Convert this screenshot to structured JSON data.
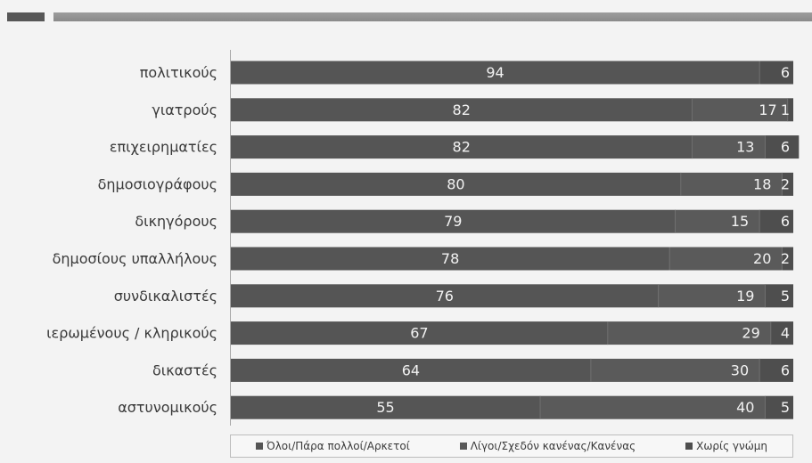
{
  "chart_data": {
    "type": "bar",
    "orientation": "horizontal",
    "stacked": true,
    "categories": [
      "πολιτικούς",
      "γιατρούς",
      "επιχειρηματίες",
      "δημοσιογράφους",
      "δικηγόρους",
      "δημοσίους υπαλλήλους",
      "συνδικαλιστές",
      "ιερωμένους / κληρικούς",
      "δικαστές",
      "αστυνομικούς"
    ],
    "series": [
      {
        "name": "Όλοι/Πάρα πολλοί/Αρκετοί",
        "values": [
          94,
          82,
          82,
          80,
          79,
          78,
          76,
          67,
          64,
          55
        ],
        "color": "#555555"
      },
      {
        "name": "Λίγοι/Σχεδόν κανένας/Κανένας",
        "values": [
          0,
          17,
          13,
          18,
          15,
          20,
          19,
          29,
          30,
          40
        ],
        "color": "#5a5a5a"
      },
      {
        "name": "Χωρίς γνώμη",
        "values": [
          6,
          1,
          6,
          2,
          6,
          2,
          5,
          4,
          6,
          5
        ],
        "color": "#4e4e4e"
      }
    ],
    "segment_labels": [
      [
        "94",
        "",
        "6"
      ],
      [
        "82",
        "17",
        "1"
      ],
      [
        "82",
        "13",
        "6"
      ],
      [
        "80",
        "18",
        "2"
      ],
      [
        "79",
        "15",
        "6"
      ],
      [
        "78",
        "20",
        "2"
      ],
      [
        "76",
        "19",
        "5"
      ],
      [
        "67",
        "29",
        "4"
      ],
      [
        "64",
        "30",
        "6"
      ],
      [
        "55",
        "40",
        "5"
      ]
    ],
    "xlim": [
      0,
      100
    ],
    "legend_position": "bottom"
  }
}
